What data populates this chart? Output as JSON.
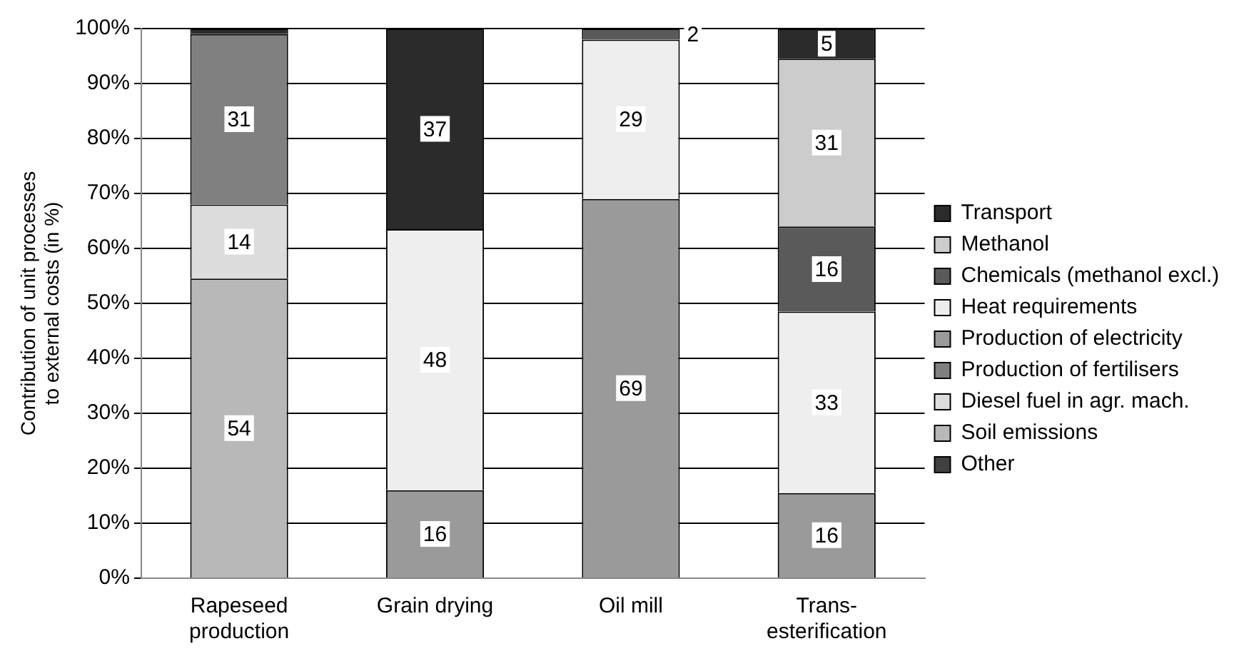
{
  "chart_data": {
    "type": "bar",
    "stacked": true,
    "ylabel": "Contribution of unit processes\nto external costs (in %)",
    "categories": [
      "Rapeseed\nproduction",
      "Grain drying",
      "Oil mill",
      "Trans-\nesterification"
    ],
    "ylim": [
      0,
      100
    ],
    "yticks": [
      {
        "value": 0,
        "label": "0%"
      },
      {
        "value": 10,
        "label": "10%"
      },
      {
        "value": 20,
        "label": "20%"
      },
      {
        "value": 30,
        "label": "30%"
      },
      {
        "value": 40,
        "label": "40%"
      },
      {
        "value": 50,
        "label": "50%"
      },
      {
        "value": 60,
        "label": "60%"
      },
      {
        "value": 70,
        "label": "70%"
      },
      {
        "value": 80,
        "label": "80%"
      },
      {
        "value": 90,
        "label": "90%"
      },
      {
        "value": 100,
        "label": "100%"
      }
    ],
    "grid": "y",
    "legend": "right",
    "series": [
      {
        "name": "Other",
        "color": "#404040",
        "values": [
          null,
          null,
          null,
          null
        ]
      },
      {
        "name": "Soil emissions",
        "color": "#b8b8b8",
        "values": [
          54.5,
          null,
          null,
          null
        ],
        "value_labels": [
          "54",
          null,
          null,
          null
        ]
      },
      {
        "name": "Diesel fuel in agr. mach.",
        "color": "#dcdcdc",
        "values": [
          13.5,
          null,
          null,
          null
        ],
        "value_labels": [
          "14",
          null,
          null,
          null
        ]
      },
      {
        "name": "Production of fertilisers",
        "color": "#808080",
        "values": [
          31,
          null,
          null,
          null
        ],
        "value_labels": [
          "31",
          null,
          null,
          null
        ]
      },
      {
        "name": "Production of electricity",
        "color": "#9a9a9a",
        "values": [
          null,
          16,
          69,
          15.5
        ],
        "value_labels": [
          null,
          "16",
          "69",
          "16"
        ]
      },
      {
        "name": "Heat requirements",
        "color": "#eeeeee",
        "values": [
          null,
          47.5,
          29,
          33
        ],
        "value_labels": [
          null,
          "48",
          "29",
          "33"
        ]
      },
      {
        "name": "Chemicals (methanol excl.)",
        "color": "#5a5a5a",
        "values": [
          null,
          null,
          2,
          15.5
        ],
        "value_labels": [
          null,
          null,
          "2",
          "16"
        ]
      },
      {
        "name": "Methanol",
        "color": "#cccccc",
        "values": [
          null,
          null,
          null,
          30.5
        ],
        "value_labels": [
          null,
          null,
          null,
          "31"
        ]
      },
      {
        "name": "Transport",
        "color": "#2b2b2b",
        "values": [
          1,
          36.5,
          null,
          5.5
        ],
        "value_labels": [
          null,
          "37",
          null,
          "5"
        ]
      }
    ]
  }
}
